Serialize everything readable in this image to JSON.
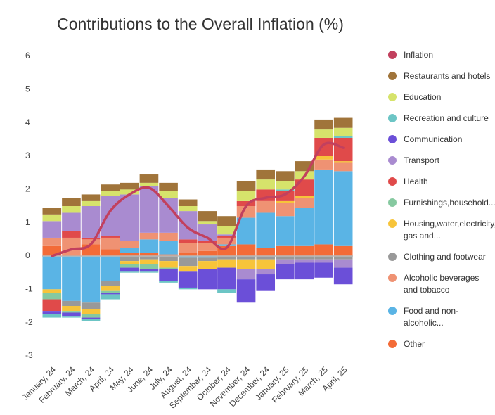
{
  "chart_data": {
    "type": "bar",
    "title": "Contributions to the Overall Inflation (%)",
    "categories": [
      "January, 24",
      "February, 24",
      "March, 24",
      "April, 24",
      "May, 24",
      "June, 24",
      "July, 24",
      "August, 24",
      "September, 24",
      "October, 24",
      "November, 24",
      "December, 24",
      "January, 25",
      "February, 25",
      "March, 25",
      "April, 25"
    ],
    "ylim": [
      -3,
      6
    ],
    "yticks": [
      -3,
      -2,
      -1,
      0,
      1,
      2,
      3,
      4,
      5,
      6
    ],
    "grid": false,
    "legend": "right",
    "series": [
      {
        "name": "Inflation",
        "type": "line",
        "color": "#c2405e",
        "values": [
          0.0,
          0.2,
          0.35,
          1.35,
          1.85,
          2.05,
          1.5,
          0.85,
          0.55,
          0.25,
          1.5,
          1.75,
          1.85,
          2.4,
          3.35,
          3.25
        ]
      },
      {
        "name": "Restaurants and hotels",
        "color": "#a0743a",
        "values": [
          0.2,
          0.25,
          0.2,
          0.2,
          0.2,
          0.25,
          0.25,
          0.2,
          0.3,
          0.3,
          0.3,
          0.3,
          0.3,
          0.3,
          0.3,
          0.3
        ]
      },
      {
        "name": "Education",
        "color": "#d6e36b",
        "values": [
          0.2,
          0.2,
          0.15,
          0.15,
          0.15,
          0.1,
          0.2,
          0.15,
          0.1,
          0.25,
          0.3,
          0.3,
          0.25,
          0.25,
          0.25,
          0.25
        ]
      },
      {
        "name": "Recreation and culture",
        "color": "#6cc5c5",
        "values": [
          -0.1,
          -0.05,
          -0.05,
          -0.15,
          -0.05,
          -0.05,
          -0.05,
          -0.05,
          0,
          -0.1,
          0,
          0,
          0.05,
          0,
          0,
          0.05
        ]
      },
      {
        "name": "Communication",
        "color": "#6b4fd8",
        "values": [
          -0.1,
          -0.1,
          -0.05,
          -0.05,
          -0.1,
          -0.05,
          -0.35,
          -0.5,
          -0.6,
          -0.65,
          -0.7,
          -0.5,
          -0.45,
          -0.5,
          -0.45,
          -0.5
        ]
      },
      {
        "name": "Transport",
        "color": "#a98bd0",
        "values": [
          0.5,
          0.55,
          0.95,
          1.2,
          1.4,
          1.4,
          1.05,
          0.85,
          0.5,
          0.05,
          -0.3,
          -0.15,
          -0.15,
          -0.1,
          -0.1,
          -0.25
        ]
      },
      {
        "name": "Health",
        "color": "#e04a4a",
        "values": [
          -0.35,
          0.2,
          0.05,
          0.05,
          0,
          0,
          0,
          0.1,
          0.05,
          0.05,
          0.15,
          0.35,
          0.3,
          0.5,
          0.55,
          0.7
        ]
      },
      {
        "name": "Furnishings,household...",
        "color": "#86c9a0",
        "values": [
          -0.2,
          -0.05,
          -0.1,
          -0.05,
          -0.1,
          -0.15,
          -0.05,
          0,
          0,
          0,
          0,
          0,
          0,
          0,
          0,
          0
        ]
      },
      {
        "name": "Housing,water,electricity, gas and...",
        "color": "#f7c43a",
        "values": [
          -0.1,
          -0.15,
          -0.15,
          -0.15,
          -0.1,
          -0.15,
          -0.2,
          -0.15,
          -0.25,
          -0.25,
          -0.3,
          -0.3,
          0.05,
          0.05,
          0.1,
          0.05
        ]
      },
      {
        "name": "Clothing and footwear",
        "color": "#999999",
        "values": [
          0,
          -0.15,
          -0.2,
          -0.15,
          -0.15,
          -0.1,
          -0.15,
          -0.25,
          -0.1,
          -0.1,
          -0.1,
          -0.1,
          -0.1,
          -0.1,
          -0.1,
          -0.1
        ]
      },
      {
        "name": "Alcoholic beverages and tobacco",
        "color": "#ef9273",
        "values": [
          0.25,
          0.5,
          0.15,
          0.35,
          0.2,
          0.2,
          0.25,
          0.3,
          0.25,
          0.2,
          0.35,
          0.35,
          0.4,
          0.3,
          0.3,
          0.25
        ]
      },
      {
        "name": "Food and non-alcoholic...",
        "color": "#5ab4e5",
        "values": [
          -1.0,
          -1.35,
          -1.4,
          -0.75,
          0.15,
          0.4,
          0.4,
          -0.05,
          -0.05,
          0.05,
          0.8,
          1.05,
          0.9,
          1.15,
          2.25,
          2.25
        ]
      },
      {
        "name": "Other",
        "color": "#f36b37",
        "values": [
          0.3,
          0.05,
          0.35,
          0.2,
          0.1,
          0.1,
          0.05,
          0.1,
          0.15,
          0.3,
          0.35,
          0.25,
          0.3,
          0.3,
          0.35,
          0.3
        ]
      }
    ]
  }
}
